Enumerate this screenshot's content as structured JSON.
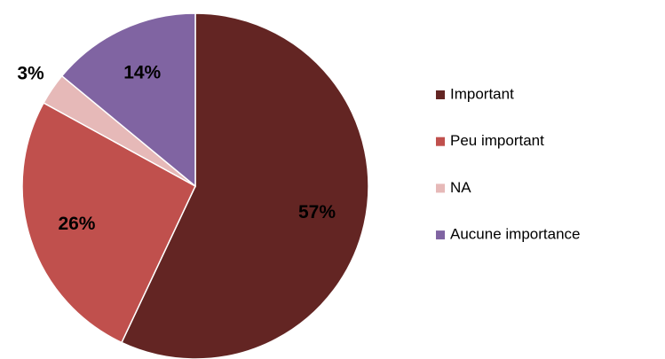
{
  "chart_data": {
    "type": "pie",
    "categories": [
      "Important",
      "Peu important",
      "NA",
      "Aucune importance"
    ],
    "values": [
      57,
      26,
      3,
      14
    ],
    "value_labels": [
      "57%",
      "26%",
      "3%",
      "14%"
    ],
    "colors": [
      "#632523",
      "#c0504d",
      "#e6b9b8",
      "#8064a2"
    ],
    "legend": "right"
  }
}
